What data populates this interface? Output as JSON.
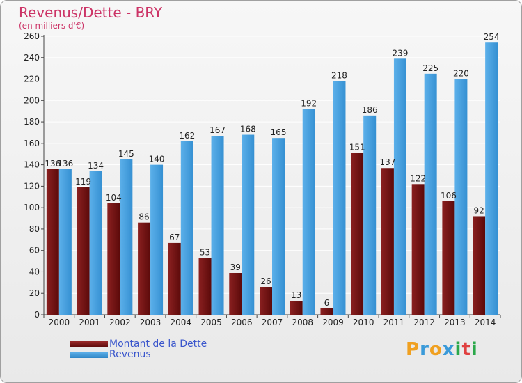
{
  "title": "Revenus/Dette - BRY",
  "subtitle": "(en milliers d'€)",
  "legend": {
    "debt_label": "Montant de la Dette",
    "revenue_label": "Revenus"
  },
  "logo": {
    "letters": [
      "P",
      "r",
      "o",
      "x",
      "i",
      "t",
      "i"
    ],
    "colors": [
      "#f0a020",
      "#3a9ad9",
      "#f0a020",
      "#3a9ad9",
      "#2aa84a",
      "#e04040",
      "#2aa84a"
    ]
  },
  "colors": {
    "debt": "#7a1818",
    "revenue": "#3a9ad9"
  },
  "chart_data": {
    "type": "bar",
    "categories": [
      "2000",
      "2001",
      "2002",
      "2003",
      "2004",
      "2005",
      "2006",
      "2007",
      "2008",
      "2009",
      "2010",
      "2011",
      "2012",
      "2013",
      "2014"
    ],
    "series": [
      {
        "name": "Montant de la Dette",
        "values": [
          136,
          119,
          104,
          86,
          67,
          53,
          39,
          26,
          13,
          6,
          151,
          137,
          122,
          106,
          92
        ]
      },
      {
        "name": "Revenus",
        "values": [
          136,
          134,
          145,
          140,
          162,
          167,
          168,
          165,
          192,
          218,
          186,
          239,
          225,
          220,
          254
        ]
      }
    ],
    "ylim": [
      0,
      260
    ],
    "yticks": [
      0,
      20,
      40,
      60,
      80,
      100,
      120,
      140,
      160,
      180,
      200,
      220,
      240,
      260
    ],
    "grid": true
  }
}
